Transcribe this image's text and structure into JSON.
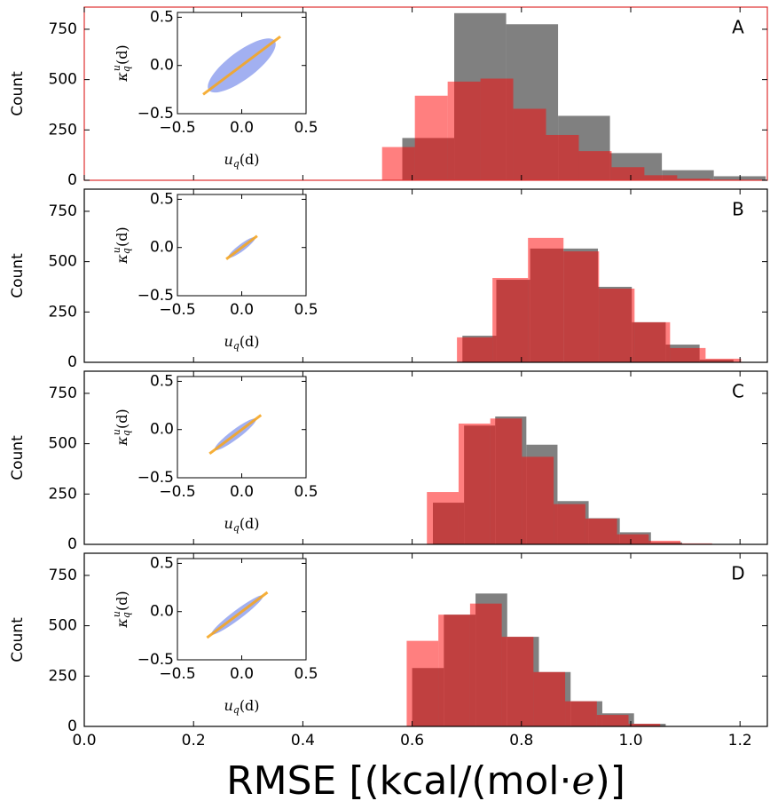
{
  "chart_data": [
    {
      "type": "histogram",
      "panel_label": "A",
      "border_color": "#e03030",
      "ylabel": "Count",
      "xlim": [
        0,
        1.25
      ],
      "ylim": [
        0,
        860
      ],
      "yticks": [
        0,
        250,
        500,
        750
      ],
      "series": [
        {
          "color": "#808080",
          "opacity": 1,
          "bins": [
            0.582,
            0.677,
            0.772,
            0.867,
            0.962,
            1.057,
            1.152,
            1.247
          ],
          "values": [
            210,
            830,
            775,
            320,
            135,
            50,
            20
          ]
        },
        {
          "color": "#ff0000",
          "opacity": 0.5,
          "bins": [
            0.545,
            0.605,
            0.665,
            0.725,
            0.785,
            0.845,
            0.905,
            0.965,
            1.025,
            1.085,
            1.145,
            1.205
          ],
          "values": [
            165,
            420,
            490,
            505,
            355,
            225,
            145,
            65,
            25,
            8,
            3
          ]
        }
      ],
      "inset": {
        "type": "line",
        "xlim": [
          -0.5,
          0.5
        ],
        "ylim": [
          -0.5,
          0.55
        ],
        "xlabel_parts": [
          "u",
          "q",
          "(d)"
        ],
        "ylabel_parts": [
          "κ",
          "q",
          "u",
          "(d)"
        ],
        "xticks": [
          {
            "value": -0.5,
            "label": "−0.5"
          },
          {
            "value": 0,
            "label": "0.0"
          },
          0.5
        ],
        "yticks": [
          {
            "value": -0.5,
            "label": "−0.5"
          },
          {
            "value": 0,
            "label": "0.0"
          },
          0.5
        ],
        "x": [
          -0.3,
          0.3
        ],
        "values": [
          -0.3,
          0.3
        ],
        "color": "#f5a623",
        "cloud_rx": 0.32,
        "cloud_ry": 0.1
      }
    },
    {
      "type": "histogram",
      "panel_label": "B",
      "ylabel": "Count",
      "xlim": [
        0,
        1.25
      ],
      "ylim": [
        0,
        860
      ],
      "yticks": [
        0,
        250,
        500,
        750
      ],
      "series": [
        {
          "color": "#808080",
          "opacity": 1,
          "bins": [
            0.692,
            0.754,
            0.816,
            0.878,
            0.94,
            1.002,
            1.064,
            1.126,
            1.188
          ],
          "values": [
            132,
            410,
            565,
            565,
            375,
            199,
            88,
            13
          ]
        },
        {
          "color": "#ff0000",
          "opacity": 0.5,
          "bins": [
            0.682,
            0.747,
            0.812,
            0.877,
            0.942,
            1.007,
            1.072,
            1.137,
            1.202
          ],
          "values": [
            124,
            419,
            618,
            551,
            366,
            199,
            71,
            18
          ]
        }
      ],
      "inset": {
        "type": "line",
        "xlim": [
          -0.5,
          0.5
        ],
        "ylim": [
          -0.5,
          0.55
        ],
        "xlabel_parts": [
          "u",
          "q",
          "(d)"
        ],
        "ylabel_parts": [
          "κ",
          "q",
          "u",
          "(d)"
        ],
        "xticks": [
          {
            "value": -0.5,
            "label": "−0.5"
          },
          {
            "value": 0,
            "label": "0.0"
          },
          0.5
        ],
        "yticks": [
          {
            "value": -0.5,
            "label": "−0.5"
          },
          {
            "value": 0,
            "label": "0.0"
          },
          0.5
        ],
        "x": [
          -0.12,
          0.12
        ],
        "values": [
          -0.12,
          0.12
        ],
        "color": "#f5a623",
        "cloud_rx": 0.13,
        "cloud_ry": 0.02
      }
    },
    {
      "type": "histogram",
      "panel_label": "C",
      "ylabel": "Count",
      "xlim": [
        0,
        1.25
      ],
      "ylim": [
        0,
        860
      ],
      "yticks": [
        0,
        250,
        500,
        750
      ],
      "series": [
        {
          "color": "#808080",
          "opacity": 1,
          "bins": [
            0.638,
            0.695,
            0.752,
            0.809,
            0.866,
            0.923,
            0.98,
            1.037,
            1.094
          ],
          "values": [
            207,
            590,
            635,
            495,
            215,
            130,
            60,
            10
          ]
        },
        {
          "color": "#ff0000",
          "opacity": 0.5,
          "bins": [
            0.627,
            0.685,
            0.743,
            0.801,
            0.859,
            0.917,
            0.975,
            1.033,
            1.091,
            1.149
          ],
          "values": [
            260,
            600,
            625,
            435,
            200,
            128,
            50,
            18,
            5
          ]
        }
      ],
      "inset": {
        "type": "line",
        "xlim": [
          -0.5,
          0.5
        ],
        "ylim": [
          -0.5,
          0.55
        ],
        "xlabel_parts": [
          "u",
          "q",
          "(d)"
        ],
        "ylabel_parts": [
          "κ",
          "q",
          "u",
          "(d)"
        ],
        "xticks": [
          {
            "value": -0.5,
            "label": "−0.5"
          },
          {
            "value": 0,
            "label": "0.0"
          },
          0.5
        ],
        "yticks": [
          {
            "value": -0.5,
            "label": "−0.5"
          },
          {
            "value": 0,
            "label": "0.0"
          },
          0.5
        ],
        "x": [
          -0.25,
          0.15
        ],
        "values": [
          -0.25,
          0.15
        ],
        "color": "#f5a623",
        "cloud_rx": 0.2,
        "cloud_ry": 0.03
      }
    },
    {
      "type": "histogram",
      "panel_label": "D",
      "ylabel": "Count",
      "xlim": [
        0,
        1.25
      ],
      "ylim": [
        0,
        860
      ],
      "yticks": [
        0,
        250,
        500,
        750
      ],
      "series": [
        {
          "color": "#808080",
          "opacity": 1,
          "bins": [
            0.6,
            0.658,
            0.716,
            0.774,
            0.832,
            0.89,
            0.948,
            1.006,
            1.064
          ],
          "values": [
            290,
            555,
            660,
            445,
            270,
            125,
            65,
            13
          ]
        },
        {
          "color": "#ff0000",
          "opacity": 0.5,
          "bins": [
            0.59,
            0.648,
            0.706,
            0.764,
            0.822,
            0.88,
            0.938,
            0.996,
            1.054
          ],
          "values": [
            425,
            555,
            610,
            445,
            270,
            125,
            57,
            13
          ]
        }
      ],
      "inset": {
        "type": "line",
        "xlim": [
          -0.5,
          0.5
        ],
        "ylim": [
          -0.5,
          0.55
        ],
        "xlabel_parts": [
          "u",
          "q",
          "(d)"
        ],
        "ylabel_parts": [
          "κ",
          "q",
          "u",
          "(d)"
        ],
        "xticks": [
          {
            "value": -0.5,
            "label": "−0.5"
          },
          {
            "value": 0,
            "label": "0.0"
          },
          0.5
        ],
        "yticks": [
          {
            "value": -0.5,
            "label": "−0.5"
          },
          {
            "value": 0,
            "label": "0.0"
          },
          0.5
        ],
        "x": [
          -0.27,
          0.2
        ],
        "values": [
          -0.27,
          0.2
        ],
        "color": "#f5a623",
        "cloud_rx": 0.25,
        "cloud_ry": 0.03
      }
    }
  ],
  "xticks": [
    {
      "value": 0,
      "label": "0.0"
    },
    0.2,
    0.4,
    0.6,
    0.8,
    {
      "value": 1,
      "label": "1.0"
    },
    1.2
  ],
  "xlabel_parts": [
    "RMSE [(kcal/(mol·",
    "e",
    ")]"
  ]
}
